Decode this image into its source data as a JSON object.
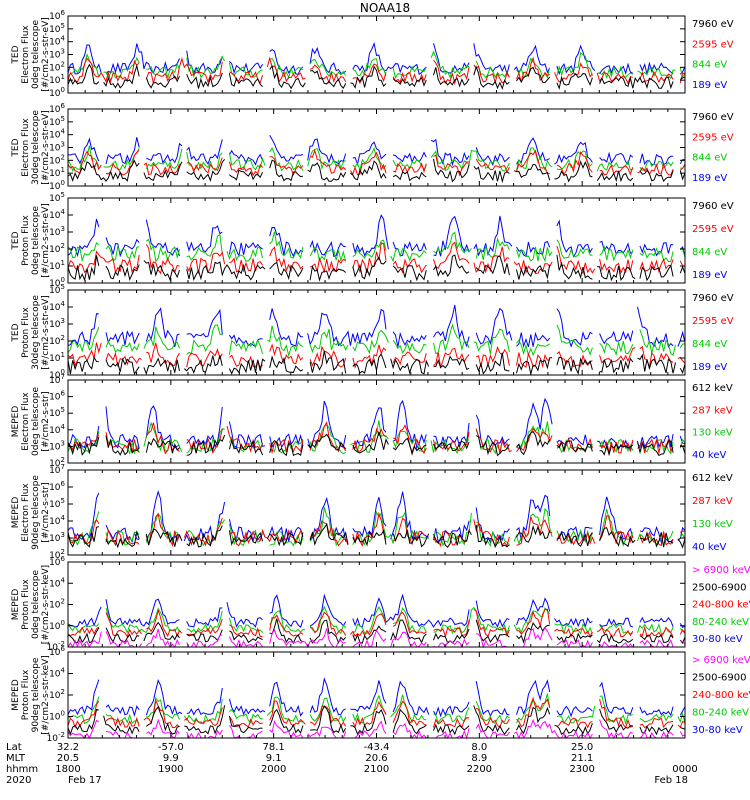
{
  "title": "NOAA18",
  "colors": {
    "blue": "#0000ff",
    "red": "#ff0000",
    "green": "#00cc00",
    "black": "#000000",
    "magenta": "#ff00ff"
  },
  "chart_data": [
    {
      "type": "line",
      "ylabel": [
        "TED",
        "Electron Flux",
        "0deg telescope",
        "[#/cm2-s-str-eV]"
      ],
      "ylim_log10": [
        0,
        6
      ],
      "ytick_exponents": [
        0,
        1,
        2,
        3,
        4,
        5,
        6
      ],
      "legend": [
        {
          "label": "7960 eV",
          "color": "black"
        },
        {
          "label": "2595 eV",
          "color": "red"
        },
        {
          "label": "844 eV",
          "color": "green"
        },
        {
          "label": "189 eV",
          "color": "blue"
        }
      ],
      "series": [
        {
          "name": "189 eV",
          "color": "blue",
          "base": 1.9,
          "peak": 3.5
        },
        {
          "name": "844 eV",
          "color": "green",
          "base": 1.6,
          "peak": 2.8
        },
        {
          "name": "2595 eV",
          "color": "red",
          "base": 1.2,
          "peak": 2.4
        },
        {
          "name": "7960 eV",
          "color": "black",
          "base": 0.8,
          "peak": 1.8
        }
      ],
      "events": [
        8,
        27,
        45,
        61,
        79,
        96,
        119,
        142,
        158,
        181,
        200
      ]
    },
    {
      "type": "line",
      "ylabel": [
        "TED",
        "Electron Flux",
        "30deg telescope",
        "[#/cm2-s-str-eV]"
      ],
      "ylim_log10": [
        0,
        6
      ],
      "ytick_exponents": [
        0,
        1,
        2,
        3,
        4,
        5,
        6
      ],
      "legend": [
        {
          "label": "7960 eV",
          "color": "black"
        },
        {
          "label": "2595 eV",
          "color": "red"
        },
        {
          "label": "844 eV",
          "color": "green"
        },
        {
          "label": "189 eV",
          "color": "blue"
        }
      ],
      "series": [
        {
          "name": "189 eV",
          "color": "blue",
          "base": 2.1,
          "peak": 3.6
        },
        {
          "name": "844 eV",
          "color": "green",
          "base": 1.6,
          "peak": 2.8
        },
        {
          "name": "2595 eV",
          "color": "red",
          "base": 1.3,
          "peak": 2.5
        },
        {
          "name": "7960 eV",
          "color": "black",
          "base": 0.8,
          "peak": 1.8
        }
      ],
      "events": [
        8,
        27,
        45,
        61,
        79,
        96,
        119,
        142,
        158,
        181,
        200
      ]
    },
    {
      "type": "line",
      "ylabel": [
        "TED",
        "Proton Flux",
        "0deg telescope",
        "[#/cm2-s-str-eV]"
      ],
      "ylim_log10": [
        0,
        5
      ],
      "ytick_exponents": [
        0,
        1,
        2,
        3,
        4,
        5
      ],
      "legend": [
        {
          "label": "7960 eV",
          "color": "black"
        },
        {
          "label": "2595 eV",
          "color": "red"
        },
        {
          "label": "844 eV",
          "color": "green"
        },
        {
          "label": "189 eV",
          "color": "blue"
        }
      ],
      "series": [
        {
          "name": "189 eV",
          "color": "blue",
          "base": 2.0,
          "peak": 3.6
        },
        {
          "name": "844 eV",
          "color": "green",
          "base": 1.7,
          "peak": 2.6
        },
        {
          "name": "2595 eV",
          "color": "red",
          "base": 1.0,
          "peak": 2.0
        },
        {
          "name": "7960 eV",
          "color": "black",
          "base": 0.6,
          "peak": 1.3
        }
      ],
      "events": [
        12,
        30,
        58,
        80,
        122,
        150,
        168,
        190
      ]
    },
    {
      "type": "line",
      "ylabel": [
        "TED",
        "Proton Flux",
        "30deg telescope",
        "[#/cm2-s-str-eV]"
      ],
      "ylim_log10": [
        0,
        5
      ],
      "ytick_exponents": [
        0,
        1,
        2,
        3,
        4,
        5
      ],
      "legend": [
        {
          "label": "7960 eV",
          "color": "black"
        },
        {
          "label": "2595 eV",
          "color": "red"
        },
        {
          "label": "844 eV",
          "color": "green"
        },
        {
          "label": "189 eV",
          "color": "blue"
        }
      ],
      "series": [
        {
          "name": "189 eV",
          "color": "blue",
          "base": 2.1,
          "peak": 3.8
        },
        {
          "name": "844 eV",
          "color": "green",
          "base": 1.6,
          "peak": 2.7
        },
        {
          "name": "2595 eV",
          "color": "red",
          "base": 0.9,
          "peak": 1.6
        },
        {
          "name": "7960 eV",
          "color": "black",
          "base": 0.5,
          "peak": 1.0
        }
      ],
      "events": [
        12,
        35,
        58,
        80,
        100,
        122,
        150,
        168,
        190,
        222
      ]
    },
    {
      "type": "line",
      "ylabel": [
        "MEPED",
        "Electron Flux",
        "0deg telescope",
        "[#/cm2-s-str]"
      ],
      "ylim_log10": [
        2,
        7
      ],
      "ytick_exponents": [
        2,
        3,
        4,
        5,
        6,
        7
      ],
      "legend": [
        {
          "label": "612 keV",
          "color": "black"
        },
        {
          "label": "287 keV",
          "color": "red"
        },
        {
          "label": "130 keV",
          "color": "green"
        },
        {
          "label": "40 keV",
          "color": "blue"
        }
      ],
      "series": [
        {
          "name": "40 keV",
          "color": "blue",
          "base": 3.3,
          "peak": 5.5
        },
        {
          "name": "130 keV",
          "color": "green",
          "base": 3.0,
          "peak": 4.2
        },
        {
          "name": "287 keV",
          "color": "red",
          "base": 3.0,
          "peak": 4.1
        },
        {
          "name": "612 keV",
          "color": "black",
          "base": 2.9,
          "peak": 3.5
        }
      ],
      "events": [
        14,
        33,
        61,
        100,
        121,
        130,
        158,
        181,
        186
      ]
    },
    {
      "type": "line",
      "ylabel": [
        "MEPED",
        "Electron Flux",
        "90deg telescope",
        "[#/cm2-s-str]"
      ],
      "ylim_log10": [
        2,
        7
      ],
      "ytick_exponents": [
        2,
        3,
        4,
        5,
        6,
        7
      ],
      "legend": [
        {
          "label": "612 keV",
          "color": "black"
        },
        {
          "label": "287 keV",
          "color": "red"
        },
        {
          "label": "130 keV",
          "color": "green"
        },
        {
          "label": "40 keV",
          "color": "blue"
        }
      ],
      "series": [
        {
          "name": "40 keV",
          "color": "blue",
          "base": 3.2,
          "peak": 5.3
        },
        {
          "name": "130 keV",
          "color": "green",
          "base": 3.0,
          "peak": 4.4
        },
        {
          "name": "287 keV",
          "color": "red",
          "base": 3.0,
          "peak": 4.0
        },
        {
          "name": "612 keV",
          "color": "black",
          "base": 2.9,
          "peak": 3.4
        }
      ],
      "events": [
        12,
        35,
        61,
        100,
        121,
        130,
        158,
        181,
        186,
        210
      ]
    },
    {
      "type": "line",
      "ylabel": [
        "MEPED",
        "Proton Flux",
        "0deg telescope",
        "[#/cm2-s-str-keV]"
      ],
      "ylim_log10": [
        -2,
        6
      ],
      "ytick_exponents": [
        -2,
        0,
        2,
        4,
        6
      ],
      "legend": [
        {
          "label": "> 6900 keV",
          "color": "magenta"
        },
        {
          "label": "2500-6900",
          "color": "black"
        },
        {
          "label": "240-800 keV",
          "color": "red"
        },
        {
          "label": "80-240 keV",
          "color": "green"
        },
        {
          "label": "30-80 keV",
          "color": "blue"
        }
      ],
      "series": [
        {
          "name": "30-80 keV",
          "color": "blue",
          "base": 0.3,
          "peak": 2.5
        },
        {
          "name": "80-240 keV",
          "color": "green",
          "base": -0.3,
          "peak": 1.6
        },
        {
          "name": "240-800 keV",
          "color": "red",
          "base": -0.6,
          "peak": 1.2
        },
        {
          "name": "2500-6900",
          "color": "black",
          "base": -1.2,
          "peak": 0.3
        },
        {
          "name": "> 6900 keV",
          "color": "magenta",
          "base": -1.8,
          "peak": -0.6
        }
      ],
      "events": [
        14,
        35,
        61,
        81,
        100,
        121,
        130,
        158,
        181,
        186
      ]
    },
    {
      "type": "line",
      "ylabel": [
        "MEPED",
        "Proton Flux",
        "90deg telescope",
        "[#/cm2-s-str-keV]"
      ],
      "ylim_log10": [
        -2,
        6
      ],
      "ytick_exponents": [
        -2,
        0,
        2,
        4,
        6
      ],
      "legend": [
        {
          "label": "> 6900 keV",
          "color": "magenta"
        },
        {
          "label": "2500-6900",
          "color": "black"
        },
        {
          "label": "240-800 keV",
          "color": "red"
        },
        {
          "label": "80-240 keV",
          "color": "green"
        },
        {
          "label": "30-80 keV",
          "color": "blue"
        }
      ],
      "series": [
        {
          "name": "30-80 keV",
          "color": "blue",
          "base": 0.5,
          "peak": 3.2
        },
        {
          "name": "80-240 keV",
          "color": "green",
          "base": -0.2,
          "peak": 1.8
        },
        {
          "name": "240-800 keV",
          "color": "red",
          "base": -0.6,
          "peak": 1.4
        },
        {
          "name": "2500-6900",
          "color": "black",
          "base": -1.2,
          "peak": 0.6
        },
        {
          "name": "> 6900 keV",
          "color": "magenta",
          "base": -1.8,
          "peak": -0.6
        }
      ],
      "events": [
        12,
        35,
        61,
        81,
        100,
        121,
        130,
        158,
        181,
        186,
        207
      ]
    }
  ],
  "xaxis": {
    "row_labels": [
      "Lat",
      "MLT",
      "hhmm",
      "2020"
    ],
    "xlim_minutes": [
      0,
      360
    ],
    "ticks": [
      {
        "t": 0,
        "lat": "32.2",
        "mlt": "20.5",
        "hhmm": "1800",
        "date": "Feb 17"
      },
      {
        "t": 60,
        "lat": "-57.0",
        "mlt": "9.9",
        "hhmm": "1900",
        "date": ""
      },
      {
        "t": 120,
        "lat": "78.1",
        "mlt": "9.1",
        "hhmm": "2000",
        "date": ""
      },
      {
        "t": 180,
        "lat": "-43.4",
        "mlt": "20.6",
        "hhmm": "2100",
        "date": ""
      },
      {
        "t": 240,
        "lat": "8.0",
        "mlt": "8.9",
        "hhmm": "2200",
        "date": ""
      },
      {
        "t": 300,
        "lat": "25.0",
        "mlt": "21.1",
        "hhmm": "2300",
        "date": ""
      },
      {
        "t": 360,
        "lat": "",
        "mlt": "",
        "hhmm": "0000",
        "date": "Feb 18"
      }
    ]
  }
}
